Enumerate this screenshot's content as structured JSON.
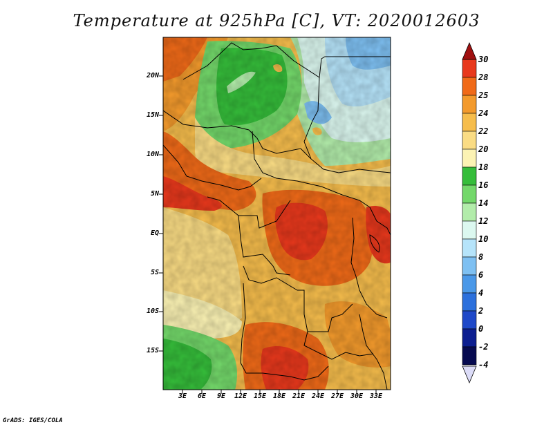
{
  "title": "Temperature at 925hPa [C], VT: 2020012603",
  "credit": "GrADS: IGES/COLA",
  "map": {
    "lat_labels": [
      "20N",
      "15N",
      "10N",
      "5N",
      "EQ",
      "5S",
      "10S",
      "15S"
    ],
    "lon_labels": [
      "3E",
      "6E",
      "9E",
      "12E",
      "15E",
      "18E",
      "21E",
      "24E",
      "27E",
      "30E",
      "33E"
    ]
  },
  "colorbar": {
    "levels": [
      "30",
      "28",
      "25",
      "24",
      "22",
      "20",
      "18",
      "16",
      "14",
      "12",
      "10",
      "8",
      "6",
      "4",
      "2",
      "0",
      "-2",
      "-4"
    ],
    "colors": [
      "#a01010",
      "#e8381c",
      "#f06a18",
      "#f39a2c",
      "#f6bd4c",
      "#fadc84",
      "#fcf3b4",
      "#35bd3a",
      "#73d86a",
      "#b2ecaa",
      "#dcf8f0",
      "#b6e4fa",
      "#7ec0f2",
      "#4a98e8",
      "#2c70dc",
      "#1e48c8",
      "#0c1e90",
      "#060a50"
    ],
    "under_color": "#dcdcf8"
  }
}
